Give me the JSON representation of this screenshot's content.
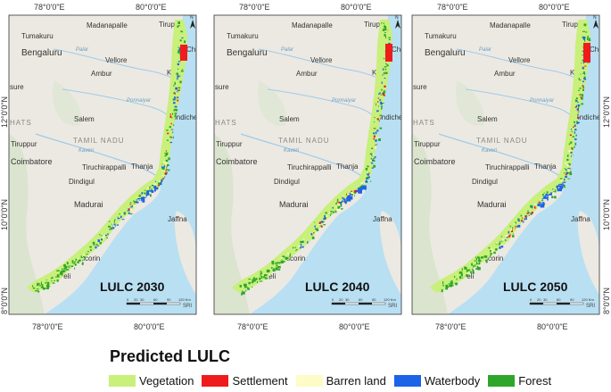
{
  "panels": [
    {
      "label": "LULC 2030",
      "scale_ticks": [
        "0",
        "20",
        "30",
        "60",
        "90",
        "120 Km"
      ]
    },
    {
      "label": "LULC 2040",
      "scale_ticks": [
        "0",
        "20",
        "30",
        "60",
        "90",
        "120 Km"
      ]
    },
    {
      "label": "LULC 2050",
      "scale_ticks": [
        "0",
        "20",
        "30",
        "60",
        "90",
        "120 Km"
      ]
    }
  ],
  "axes": {
    "top": [
      "78°0'0\"E",
      "80°0'0\"E"
    ],
    "bottom": [
      "78°0'0\"E",
      "80°0'0\"E"
    ],
    "left": [
      "12°0'0\"N",
      "10°0'0\"N",
      "8°0'0\"N"
    ]
  },
  "basemap_places": {
    "tumakuru": "Tumakuru",
    "madanapalle": "Madanapalle",
    "tirupati": "Tirupati",
    "bengaluru": "Bengaluru",
    "vellore": "Vellore",
    "ambur": "Ambur",
    "kanchipuram": "Kan",
    "chennai": "Che",
    "mysore": "sure",
    "salem": "Salem",
    "pondicherry": "Pondicherr",
    "ghats": "HATS",
    "tamilnadu": "TAMIL NADU",
    "tiruppur": "Tiruppur",
    "coimbatore": "Coimbatore",
    "tiruchirappalli": "Tiruchirappalli",
    "thanjavur": "Thanja",
    "dindigul": "Dindigul",
    "madurai": "Madurai",
    "jaffna": "Jaffna",
    "tuticorin": "Tuticorin",
    "tirunelveli": "Tir     eli",
    "palar": "Palar",
    "ponnaiyar": "Ponnaiyar",
    "kaveri": "Kaveri"
  },
  "north_arrow": "N",
  "credit": "SRI",
  "legend": {
    "title": "Predicted LULC",
    "items": [
      {
        "label": "Vegetation",
        "color": "#c8f07a"
      },
      {
        "label": "Settlement",
        "color": "#ee1c1c"
      },
      {
        "label": "Barren land",
        "color": "#fdfcc6"
      },
      {
        "label": "Waterbody",
        "color": "#1c63e8"
      },
      {
        "label": "Forest",
        "color": "#2fa52a"
      }
    ]
  }
}
